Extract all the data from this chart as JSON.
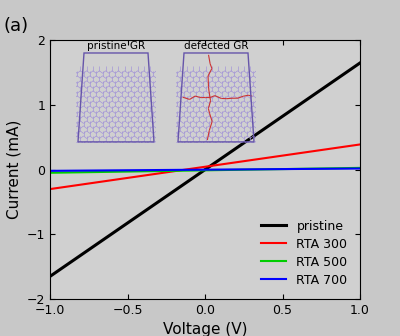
{
  "title": "",
  "xlabel": "Voltage (V)",
  "ylabel": "Current (mA)",
  "xlim": [
    -1.0,
    1.0
  ],
  "ylim": [
    -2.0,
    2.0
  ],
  "background_color": "#c8c8c8",
  "plot_bg_color": "#d0d0d0",
  "label_a": "(a)",
  "lines": {
    "pristine": {
      "slope": 1.65,
      "intercept": 0.0,
      "color": "#000000",
      "linewidth": 2.2,
      "label": "pristine"
    },
    "RTA300": {
      "slope": 0.345,
      "intercept": 0.045,
      "color": "#ff0000",
      "linewidth": 1.5,
      "label": "RTA 300"
    },
    "RTA500": {
      "slope": 0.038,
      "intercept": -0.01,
      "color": "#00cc00",
      "linewidth": 1.5,
      "label": "RTA 500"
    },
    "RTA700": {
      "slope": 0.018,
      "intercept": 0.0,
      "color": "#0000ff",
      "linewidth": 1.5,
      "label": "RTA 700"
    }
  },
  "inset1_label": "pristine GR",
  "inset2_label": "defected GR",
  "inset_bg_color": "#8878c8",
  "inset_hex_color": "#a090d8",
  "inset_defect_color": "#cc3333",
  "inset_border_color": "#6655aa",
  "yticks": [
    -2,
    -1,
    0,
    1,
    2
  ],
  "xticks": [
    -1.0,
    -0.5,
    0.0,
    0.5,
    1.0
  ],
  "legend_fontsize": 9,
  "axis_fontsize": 11,
  "tick_fontsize": 9
}
